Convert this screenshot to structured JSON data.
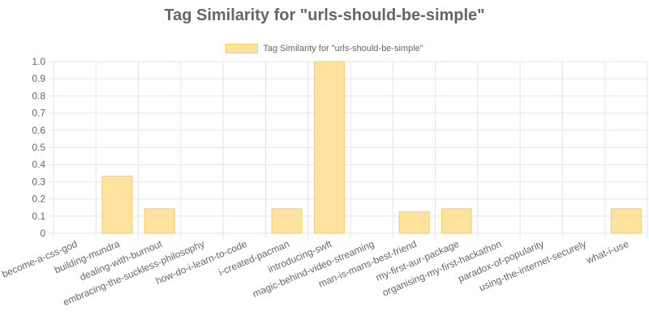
{
  "chart_data": {
    "type": "bar",
    "title": "Tag Similarity for \"urls-should-be-simple\"",
    "legend": {
      "position": "top",
      "entries": [
        "Tag Similarity for \"urls-should-be-simple\""
      ]
    },
    "categories": [
      "become-a-css-god",
      "building-mundra",
      "dealing-with-burnout",
      "embracing-the-suckless-philosophy",
      "how-do-i-learn-to-code",
      "i-created-pacman",
      "introducing-swft",
      "magic-behind-video-streaming",
      "man-is-mans-best-friend",
      "my-first-aur-package",
      "organising-my-first-hackathon",
      "paradox-of-popularity",
      "using-the-internet-securely",
      "what-i-use"
    ],
    "series": [
      {
        "name": "Tag Similarity for \"urls-should-be-simple\"",
        "values": [
          0,
          0.333,
          0.143,
          0,
          0,
          0.143,
          1.0,
          0,
          0.125,
          0.143,
          0,
          0,
          0,
          0.143
        ]
      }
    ],
    "ylim": [
      0,
      1.0
    ],
    "yticks": [
      "0",
      "0.1",
      "0.2",
      "0.3",
      "0.4",
      "0.5",
      "0.6",
      "0.7",
      "0.8",
      "0.9",
      "1.0"
    ],
    "xlabel": "",
    "ylabel": "",
    "grid": true,
    "colors": {
      "bar_fill": "#ffe29e",
      "bar_border": "#f5cf62",
      "grid": "#e5e5e5",
      "text": "#666666"
    }
  }
}
